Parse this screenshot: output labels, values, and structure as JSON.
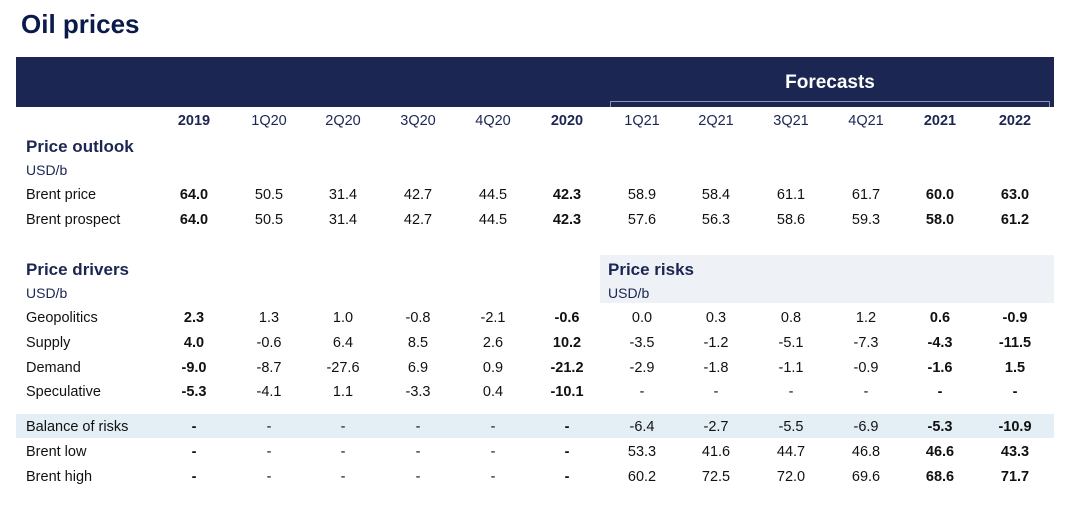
{
  "title": "Oil prices",
  "forecasts_label": "Forecasts",
  "columns": [
    "2019",
    "1Q20",
    "2Q20",
    "3Q20",
    "4Q20",
    "2020",
    "1Q21",
    "2Q21",
    "3Q21",
    "4Q21",
    "2021",
    "2022"
  ],
  "annual_columns": [
    "2019",
    "2020",
    "2021",
    "2022"
  ],
  "price_outlook": {
    "title": "Price outlook",
    "unit": "USD/b",
    "rows": [
      {
        "label": "Brent price",
        "values": [
          "64.0",
          "50.5",
          "31.4",
          "42.7",
          "44.5",
          "42.3",
          "58.9",
          "58.4",
          "61.1",
          "61.7",
          "60.0",
          "63.0"
        ]
      },
      {
        "label": "Brent prospect",
        "values": [
          "64.0",
          "50.5",
          "31.4",
          "42.7",
          "44.5",
          "42.3",
          "57.6",
          "56.3",
          "58.6",
          "59.3",
          "58.0",
          "61.2"
        ]
      }
    ]
  },
  "price_drivers": {
    "title": "Price drivers",
    "unit": "USD/b",
    "rows": [
      {
        "label": "Geopolitics",
        "values": [
          "2.3",
          "1.3",
          "1.0",
          "-0.8",
          "-2.1",
          "-0.6",
          "0.0",
          "0.3",
          "0.8",
          "1.2",
          "0.6",
          "-0.9"
        ]
      },
      {
        "label": "Supply",
        "values": [
          "4.0",
          "-0.6",
          "6.4",
          "8.5",
          "2.6",
          "10.2",
          "-3.5",
          "-1.2",
          "-5.1",
          "-7.3",
          "-4.3",
          "-11.5"
        ]
      },
      {
        "label": "Demand",
        "values": [
          "-9.0",
          "-8.7",
          "-27.6",
          "6.9",
          "0.9",
          "-21.2",
          "-2.9",
          "-1.8",
          "-1.1",
          "-0.9",
          "-1.6",
          "1.5"
        ]
      },
      {
        "label": "Speculative",
        "values": [
          "-5.3",
          "-4.1",
          "1.1",
          "-3.3",
          "0.4",
          "-10.1",
          "-",
          "-",
          "-",
          "-",
          "-",
          "-"
        ]
      }
    ]
  },
  "price_risks": {
    "title": "Price risks",
    "unit": "USD/b",
    "rows": [
      {
        "label": "Balance of risks",
        "values": [
          "-",
          "-",
          "-",
          "-",
          "-",
          "-",
          "-6.4",
          "-2.7",
          "-5.5",
          "-6.9",
          "-5.3",
          "-10.9"
        ]
      },
      {
        "label": "Brent low",
        "values": [
          "-",
          "-",
          "-",
          "-",
          "-",
          "-",
          "53.3",
          "41.6",
          "44.7",
          "46.8",
          "46.6",
          "43.3"
        ]
      },
      {
        "label": "Brent high",
        "values": [
          "-",
          "-",
          "-",
          "-",
          "-",
          "-",
          "60.2",
          "72.5",
          "72.0",
          "69.6",
          "68.6",
          "71.7"
        ]
      }
    ]
  }
}
